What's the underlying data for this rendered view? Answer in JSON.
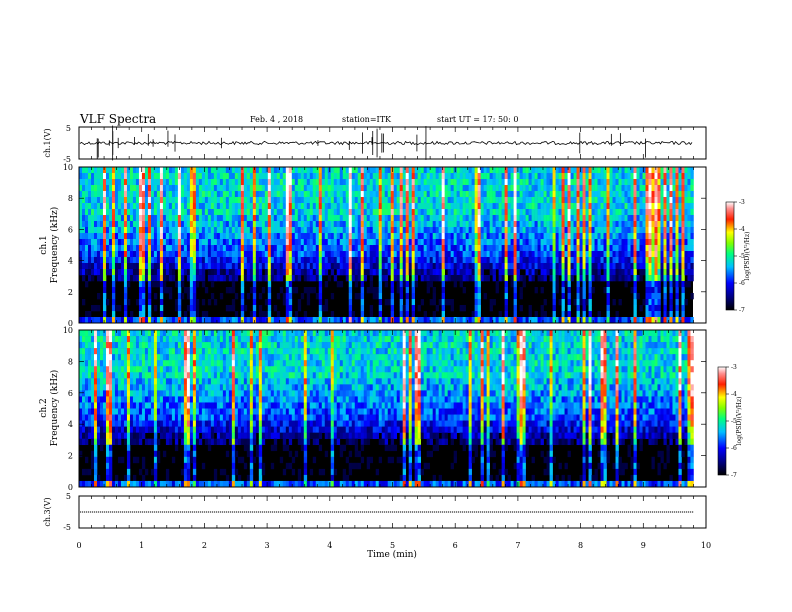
{
  "header": {
    "title": "VLF Spectra",
    "date": "Feb. 4 , 2018",
    "station": "station=ITK",
    "start": "start  UT =   17: 50: 0"
  },
  "chart_data": [
    {
      "type": "line",
      "panel": "waveform-ch1",
      "ylabel": "ch.1(V)",
      "yticks": [
        "5",
        "-5"
      ],
      "ylim": [
        -5,
        5
      ],
      "xlim": [
        0,
        10
      ],
      "baseline": 0,
      "series": [
        {
          "x": [
            0,
            9.8
          ],
          "y": [
            0,
            0
          ]
        }
      ]
    },
    {
      "type": "heatmap",
      "panel": "spectrogram-ch1",
      "ylabel_line1": "ch.1",
      "ylabel_line2": "Frequency (kHz)",
      "yticks": [
        "0",
        "2",
        "4",
        "6",
        "8",
        "10"
      ],
      "ylim": [
        0,
        10
      ],
      "xlim": [
        0,
        9.8
      ],
      "colorbar": {
        "label": "log(PSD)(V²/Hz)",
        "ticks": [
          "-3",
          "-4",
          "-5",
          "-6",
          "-7"
        ],
        "range": [
          -7,
          -3
        ]
      }
    },
    {
      "type": "heatmap",
      "panel": "spectrogram-ch2",
      "ylabel_line1": "ch.2",
      "ylabel_line2": "Frequency (kHz)",
      "yticks": [
        "0",
        "2",
        "4",
        "6",
        "8",
        "10"
      ],
      "ylim": [
        0,
        10
      ],
      "xlim": [
        0,
        9.8
      ],
      "colorbar": {
        "label": "log(PSD)(V²/Hz)",
        "ticks": [
          "-3",
          "-4",
          "-5",
          "-6",
          "-7"
        ],
        "range": [
          -7,
          -3
        ]
      }
    },
    {
      "type": "line",
      "panel": "waveform-ch3",
      "ylabel": "ch.3(V)",
      "yticks": [
        "5",
        "-5"
      ],
      "ylim": [
        -5,
        5
      ],
      "xlim": [
        0,
        10
      ],
      "baseline": 0,
      "series": [
        {
          "x": [
            0,
            9.8
          ],
          "y": [
            0,
            0
          ]
        }
      ]
    }
  ],
  "xaxis": {
    "label": "Time (min)",
    "ticks": [
      "0",
      "1",
      "2",
      "3",
      "4",
      "5",
      "6",
      "7",
      "8",
      "9",
      "10"
    ],
    "range": [
      0,
      10
    ]
  }
}
